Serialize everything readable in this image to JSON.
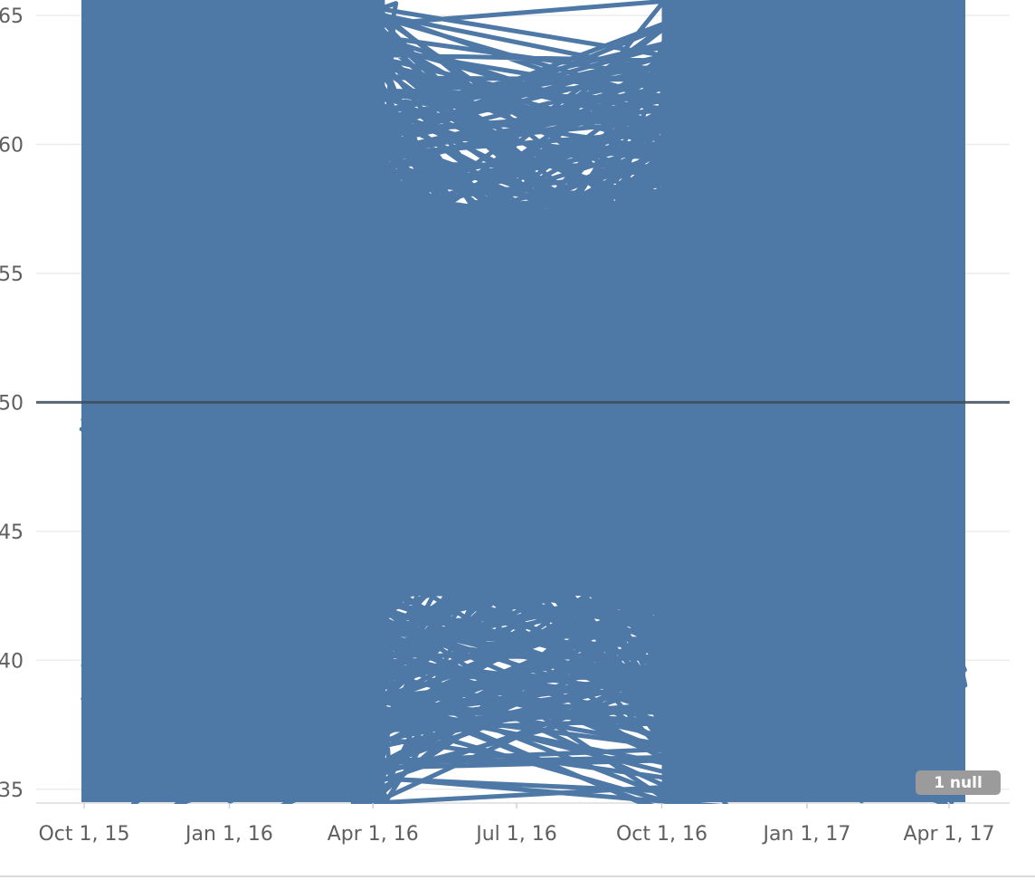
{
  "colors": {
    "series": "#4e79a7",
    "reference_line": "#3c4b5c",
    "gridline": "#ececec",
    "axis_text": "#5f5f5f",
    "null_badge": "#9b9b9b"
  },
  "null_indicator": {
    "label": "1 null"
  },
  "chart_data": {
    "type": "line",
    "title": "",
    "xlabel": "",
    "ylabel": "",
    "x_axis": {
      "kind": "date",
      "range": [
        "2015-09-25",
        "2017-04-30"
      ],
      "ticks": [
        {
          "label": "Oct 1, 15",
          "value": "2015-10-01"
        },
        {
          "label": "Jan 1, 16",
          "value": "2016-01-01"
        },
        {
          "label": "Apr 1, 16",
          "value": "2016-04-01"
        },
        {
          "label": "Jul 1, 16",
          "value": "2016-07-01"
        },
        {
          "label": "Oct 1, 16",
          "value": "2016-10-01"
        },
        {
          "label": "Jan 1, 17",
          "value": "2017-01-01"
        },
        {
          "label": "Apr 1, 17",
          "value": "2017-04-01"
        }
      ]
    },
    "y_axis": {
      "range": [
        34.5,
        65.6
      ],
      "ticks": [
        35,
        40,
        45,
        50,
        55,
        60,
        65
      ],
      "gridlines": true
    },
    "reference_line": {
      "y": 50
    },
    "series": [
      {
        "description_of_values": "dense unsorted daily observations spanning roughly 34 to 66; one series",
        "points": [
          {
            "x": "2015-10-01",
            "y": 39.8
          },
          {
            "x": "2015-10-15",
            "y": 65.0
          },
          {
            "x": "2015-11-01",
            "y": 35.0
          },
          {
            "x": "2015-12-01",
            "y": 63.0
          },
          {
            "x": "2016-01-01",
            "y": 36.0
          },
          {
            "x": "2016-02-01",
            "y": 62.0
          },
          {
            "x": "2016-03-01",
            "y": 37.0
          },
          {
            "x": "2016-04-01",
            "y": 61.0
          },
          {
            "x": "2016-04-20",
            "y": 38.0
          },
          {
            "x": "2016-05-01",
            "y": 60.6
          },
          {
            "x": "2016-06-01",
            "y": 41.6
          },
          {
            "x": "2016-07-01",
            "y": 59.0
          },
          {
            "x": "2016-08-01",
            "y": 42.5
          },
          {
            "x": "2016-09-01",
            "y": 58.0
          },
          {
            "x": "2016-10-01",
            "y": 60.5
          },
          {
            "x": "2016-10-15",
            "y": 35.0
          },
          {
            "x": "2016-11-15",
            "y": 64.0
          },
          {
            "x": "2016-12-15",
            "y": 36.0
          },
          {
            "x": "2017-01-15",
            "y": 63.0
          },
          {
            "x": "2017-02-15",
            "y": 36.5
          },
          {
            "x": "2017-03-15",
            "y": 62.0
          },
          {
            "x": "2017-04-05",
            "y": 65.4
          },
          {
            "x": "2017-04-06",
            "y": 37.0
          }
        ]
      }
    ]
  }
}
